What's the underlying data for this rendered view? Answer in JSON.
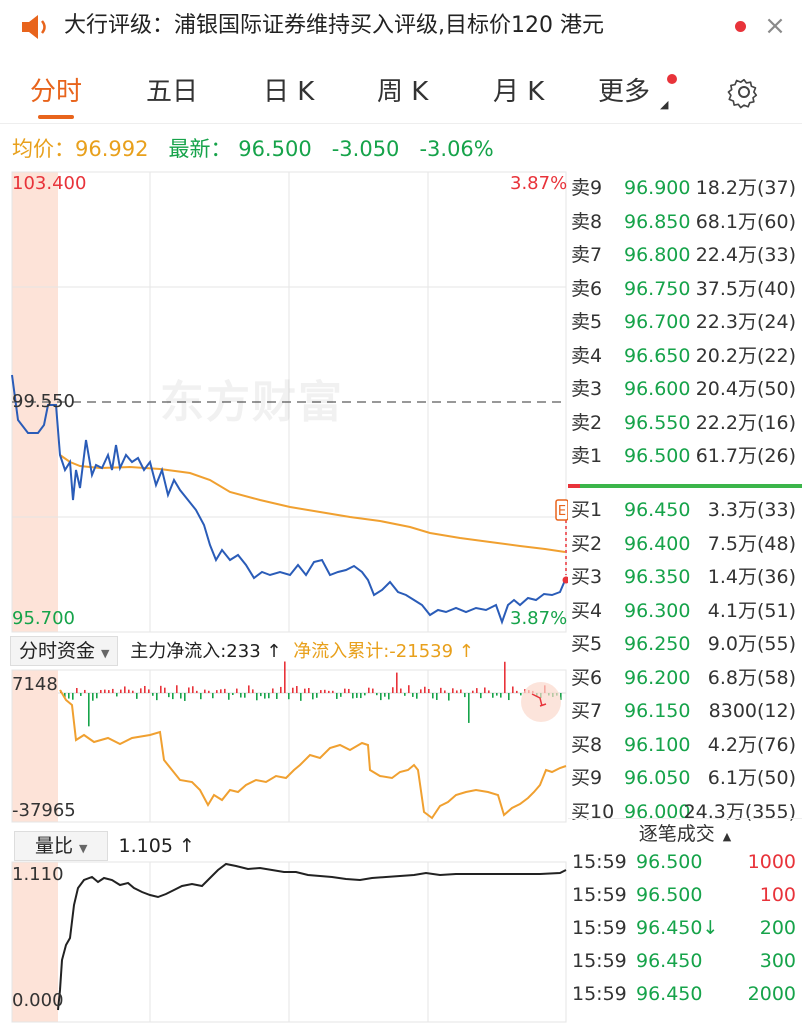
{
  "header": {
    "title": "大行评级：浦银国际证券维持买入评级,目标价120 港元",
    "close_symbol": "×"
  },
  "tabs": [
    {
      "label": "分时",
      "active": true
    },
    {
      "label": "五日",
      "active": false
    },
    {
      "label": "日 K",
      "active": false
    },
    {
      "label": "周 K",
      "active": false
    },
    {
      "label": "月 K",
      "active": false
    },
    {
      "label": "更多",
      "active": false
    }
  ],
  "summary": {
    "avg_label": "均价：",
    "avg_value": "96.992",
    "latest_label": "最新：",
    "latest_value": "96.500",
    "change": "-3.050",
    "change_pct": "-3.06%"
  },
  "price_chart": {
    "y_high": "103.400",
    "y_low": "95.700",
    "pct_high": "3.87%",
    "pct_low": "3.87%",
    "prev_close": "99.550",
    "watermark": "东方财富",
    "colors": {
      "price": "#2a5cb8",
      "avg": "#f0a030",
      "up": "#e8333a",
      "down": "#16a34a"
    }
  },
  "capital": {
    "dropdown": "分时资金",
    "main_inflow_label": "主力净流入:",
    "main_inflow_value": "233",
    "main_inflow_arrow": "↑",
    "cum_label": "净流入累计:",
    "cum_value": "-21539",
    "cum_arrow": "↑",
    "y_high": "7148",
    "y_low": "-37965"
  },
  "volume_ratio": {
    "dropdown": "量比",
    "value": "1.105",
    "arrow": "↑",
    "y_high": "1.110",
    "y_low": "0.000"
  },
  "order_book": {
    "asks": [
      {
        "level": "卖9",
        "price": "96.900",
        "volume": "18.2万(37)"
      },
      {
        "level": "卖8",
        "price": "96.850",
        "volume": "68.1万(60)"
      },
      {
        "level": "卖7",
        "price": "96.800",
        "volume": "22.4万(33)"
      },
      {
        "level": "卖6",
        "price": "96.750",
        "volume": "37.5万(40)"
      },
      {
        "level": "卖5",
        "price": "96.700",
        "volume": "22.3万(24)"
      },
      {
        "level": "卖4",
        "price": "96.650",
        "volume": "20.2万(22)"
      },
      {
        "level": "卖3",
        "price": "96.600",
        "volume": "20.4万(50)"
      },
      {
        "level": "卖2",
        "price": "96.550",
        "volume": "22.2万(16)"
      },
      {
        "level": "卖1",
        "price": "96.500",
        "volume": "61.7万(26)"
      }
    ],
    "bids": [
      {
        "level": "买1",
        "price": "96.450",
        "volume": "3.3万(33)"
      },
      {
        "level": "买2",
        "price": "96.400",
        "volume": "7.5万(48)"
      },
      {
        "level": "买3",
        "price": "96.350",
        "volume": "1.4万(36)"
      },
      {
        "level": "买4",
        "price": "96.300",
        "volume": "4.1万(51)"
      },
      {
        "level": "买5",
        "price": "96.250",
        "volume": "9.0万(55)"
      },
      {
        "level": "买6",
        "price": "96.200",
        "volume": "6.8万(58)"
      },
      {
        "level": "买7",
        "price": "96.150",
        "volume": "8300(12)"
      },
      {
        "level": "买8",
        "price": "96.100",
        "volume": "4.2万(76)"
      },
      {
        "level": "买9",
        "price": "96.050",
        "volume": "6.1万(50)"
      },
      {
        "level": "买10",
        "price": "96.000",
        "volume": "24.3万(355)"
      }
    ]
  },
  "trades": {
    "header": "逐笔成交",
    "rows": [
      {
        "time": "15:59",
        "price": "96.500",
        "volume": "1000",
        "dir": "up"
      },
      {
        "time": "15:59",
        "price": "96.500",
        "volume": "100",
        "dir": "up"
      },
      {
        "time": "15:59",
        "price": "96.450↓",
        "volume": "200",
        "dir": "down"
      },
      {
        "time": "15:59",
        "price": "96.450",
        "volume": "300",
        "dir": "down"
      },
      {
        "time": "15:59",
        "price": "96.450",
        "volume": "2000",
        "dir": "down"
      }
    ]
  }
}
